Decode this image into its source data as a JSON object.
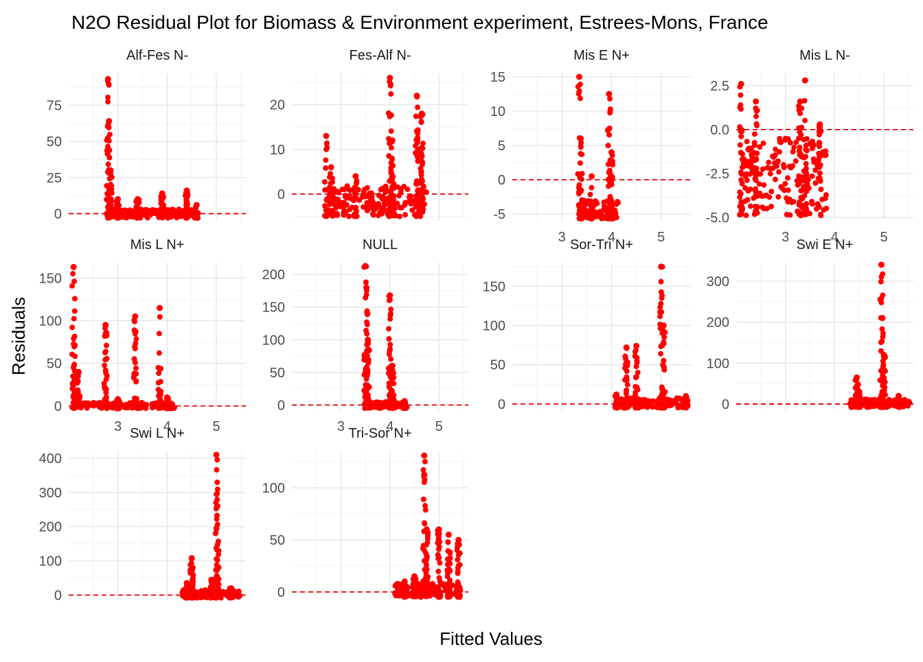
{
  "chart_data": {
    "type": "scatter",
    "title": "N2O Residual Plot for Biomass & Environment experiment, Estrees-Mons, France",
    "xlabel": "Fitted Values",
    "ylabel": "Residuals",
    "xlim": [
      2.0,
      5.6
    ],
    "x_ticks": [
      3,
      4,
      5
    ],
    "reference_line_y": 0,
    "point_color": "#ff0000",
    "reference_line_color": "#e00000",
    "grid": true,
    "panels": [
      {
        "label": "Alf-Fes N-",
        "ylim": [
          -5,
          97
        ],
        "y_ticks": [
          0,
          25,
          50,
          75
        ],
        "clusters": [
          {
            "x": 2.8,
            "y_top": 93,
            "density": 3
          },
          {
            "x": 2.82,
            "y_top": 64,
            "density": 3
          },
          {
            "x": 2.85,
            "y_top": 30,
            "density": 5
          },
          {
            "x": 3.0,
            "y_top": 10,
            "density": 4
          },
          {
            "x": 3.4,
            "y_top": 10,
            "density": 4
          },
          {
            "x": 3.9,
            "y_top": 14,
            "density": 4
          },
          {
            "x": 4.4,
            "y_top": 16,
            "density": 4
          },
          {
            "x": 4.6,
            "y_top": 6,
            "density": 3
          }
        ],
        "band": [
          2.85,
          4.6
        ],
        "band_y": [
          -3,
          3
        ]
      },
      {
        "label": "Fes-Alf N-",
        "ylim": [
          -6,
          27
        ],
        "y_ticks": [
          0,
          10,
          20
        ],
        "clusters": [
          {
            "x": 2.7,
            "y_top": 13,
            "density": 2
          },
          {
            "x": 2.8,
            "y_top": 6,
            "density": 3
          },
          {
            "x": 3.3,
            "y_top": 4,
            "density": 3
          },
          {
            "x": 4.0,
            "y_top": 26,
            "density": 3
          },
          {
            "x": 4.05,
            "y_top": 12,
            "density": 4
          },
          {
            "x": 4.55,
            "y_top": 22,
            "density": 4
          },
          {
            "x": 4.65,
            "y_top": 18,
            "density": 5
          }
        ],
        "band": [
          2.7,
          4.75
        ],
        "band_y": [
          -5,
          2
        ]
      },
      {
        "label": "Mis E N+",
        "ylim": [
          -6,
          15.5
        ],
        "y_ticks": [
          -5,
          0,
          5,
          10,
          15
        ],
        "clusters": [
          {
            "x": 3.35,
            "y_top": 15,
            "density": 2
          },
          {
            "x": 3.38,
            "y_top": 6,
            "density": 3
          },
          {
            "x": 3.6,
            "y_top": 0.5,
            "density": 2
          },
          {
            "x": 3.95,
            "y_top": 12.5,
            "density": 4
          },
          {
            "x": 4.0,
            "y_top": 4,
            "density": 3
          }
        ],
        "band": [
          3.3,
          4.15
        ],
        "band_y": [
          -5.7,
          -3
        ]
      },
      {
        "label": "Mis L N-",
        "ylim": [
          -5.2,
          3.2
        ],
        "y_ticks": [
          -5.0,
          -2.5,
          0.0,
          2.5
        ],
        "clusters": [
          {
            "x": 2.1,
            "y_top": 2.6,
            "density": 4
          },
          {
            "x": 2.4,
            "y_top": 1.6,
            "density": 3
          },
          {
            "x": 3.3,
            "y_top": 1.6,
            "density": 4
          },
          {
            "x": 3.4,
            "y_top": 2.8,
            "density": 3
          },
          {
            "x": 3.7,
            "y_top": 0.3,
            "density": 3
          }
        ],
        "band": [
          2.1,
          3.85
        ],
        "band_y": [
          -4.9,
          -0.5
        ]
      },
      {
        "label": "Mis L N+",
        "ylim": [
          -5,
          168
        ],
        "y_ticks": [
          0,
          50,
          100,
          150
        ],
        "clusters": [
          {
            "x": 2.1,
            "y_top": 163,
            "density": 6
          },
          {
            "x": 2.2,
            "y_top": 40,
            "density": 3
          },
          {
            "x": 2.75,
            "y_top": 95,
            "density": 4
          },
          {
            "x": 3.0,
            "y_top": 8,
            "density": 3
          },
          {
            "x": 3.35,
            "y_top": 105,
            "density": 4
          },
          {
            "x": 3.85,
            "y_top": 115,
            "density": 4
          },
          {
            "x": 4.0,
            "y_top": 10,
            "density": 3
          }
        ],
        "band": [
          2.1,
          4.15
        ],
        "band_y": [
          -3,
          4
        ]
      },
      {
        "label": "NULL",
        "ylim": [
          -8,
          218
        ],
        "y_ticks": [
          0,
          50,
          100,
          150,
          200
        ],
        "clusters": [
          {
            "x": 3.5,
            "y_top": 213,
            "density": 3
          },
          {
            "x": 3.52,
            "y_top": 180,
            "density": 3
          },
          {
            "x": 3.55,
            "y_top": 100,
            "density": 5
          },
          {
            "x": 4.0,
            "y_top": 168,
            "density": 4
          },
          {
            "x": 4.05,
            "y_top": 60,
            "density": 4
          },
          {
            "x": 4.3,
            "y_top": 6,
            "density": 2
          }
        ],
        "band": [
          3.5,
          4.35
        ],
        "band_y": [
          -5,
          5
        ]
      },
      {
        "label": "Sor-Tri N+",
        "ylim": [
          -8,
          180
        ],
        "y_ticks": [
          0,
          50,
          100,
          150
        ],
        "clusters": [
          {
            "x": 4.1,
            "y_top": 12,
            "density": 3
          },
          {
            "x": 4.3,
            "y_top": 72,
            "density": 4
          },
          {
            "x": 4.5,
            "y_top": 74,
            "density": 4
          },
          {
            "x": 5.0,
            "y_top": 175,
            "density": 3
          },
          {
            "x": 5.05,
            "y_top": 100,
            "density": 4
          },
          {
            "x": 5.5,
            "y_top": 10,
            "density": 3
          }
        ],
        "band": [
          4.1,
          5.55
        ],
        "band_y": [
          -5,
          8
        ]
      },
      {
        "label": "Swi E N+",
        "ylim": [
          -15,
          345
        ],
        "y_ticks": [
          0,
          100,
          200,
          300
        ],
        "clusters": [
          {
            "x": 4.45,
            "y_top": 65,
            "density": 3
          },
          {
            "x": 4.5,
            "y_top": 30,
            "density": 4
          },
          {
            "x": 4.95,
            "y_top": 340,
            "density": 3
          },
          {
            "x": 4.97,
            "y_top": 210,
            "density": 4
          },
          {
            "x": 5.0,
            "y_top": 120,
            "density": 5
          },
          {
            "x": 5.3,
            "y_top": 20,
            "density": 3
          }
        ],
        "band": [
          4.3,
          5.55
        ],
        "band_y": [
          -8,
          12
        ]
      },
      {
        "label": "Swi L N+",
        "ylim": [
          -15,
          420
        ],
        "y_ticks": [
          0,
          100,
          200,
          300,
          400
        ],
        "clusters": [
          {
            "x": 4.4,
            "y_top": 35,
            "density": 3
          },
          {
            "x": 4.5,
            "y_top": 108,
            "density": 4
          },
          {
            "x": 4.9,
            "y_top": 45,
            "density": 3
          },
          {
            "x": 5.0,
            "y_top": 410,
            "density": 3
          },
          {
            "x": 5.02,
            "y_top": 260,
            "density": 5
          },
          {
            "x": 5.3,
            "y_top": 20,
            "density": 3
          }
        ],
        "band": [
          4.3,
          5.5
        ],
        "band_y": [
          -8,
          15
        ]
      },
      {
        "label": "Tri-Sor N+",
        "ylim": [
          -8,
          135
        ],
        "y_ticks": [
          0,
          50,
          100
        ],
        "clusters": [
          {
            "x": 4.3,
            "y_top": 10,
            "density": 3
          },
          {
            "x": 4.5,
            "y_top": 15,
            "density": 3
          },
          {
            "x": 4.7,
            "y_top": 131,
            "density": 4
          },
          {
            "x": 4.75,
            "y_top": 60,
            "density": 4
          },
          {
            "x": 5.0,
            "y_top": 60,
            "density": 4
          },
          {
            "x": 5.2,
            "y_top": 55,
            "density": 4
          },
          {
            "x": 5.4,
            "y_top": 50,
            "density": 4
          }
        ],
        "band": [
          4.1,
          5.45
        ],
        "band_y": [
          -5,
          8
        ]
      }
    ]
  }
}
